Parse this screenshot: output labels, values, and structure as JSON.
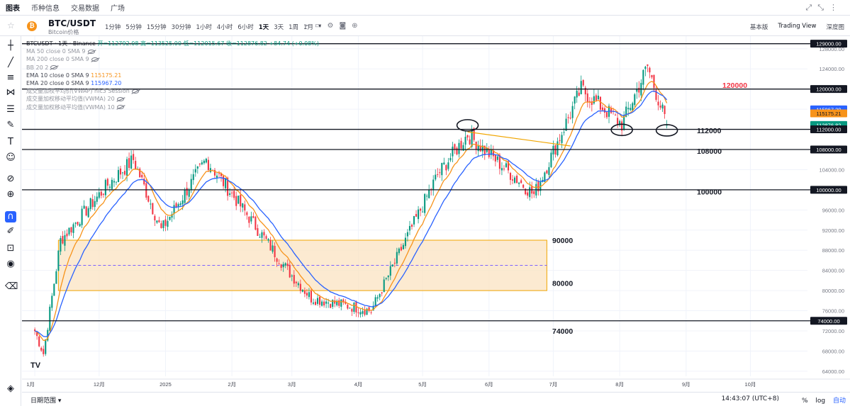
{
  "topnav": {
    "tabs": [
      "图表",
      "币种信息",
      "交易数据",
      "广场"
    ],
    "active_index": 0
  },
  "header": {
    "symbol": "BTC/USDT",
    "subtitle": "Bitcoin价格",
    "intervals": [
      "1分钟",
      "5分钟",
      "15分钟",
      "30分钟",
      "1小时",
      "4小时",
      "6小时",
      "1天",
      "3天",
      "1周",
      "1月"
    ],
    "selected_interval": "1天",
    "modes": [
      "基本版",
      "Trading View",
      "深度图"
    ],
    "selected_mode": "Trading View"
  },
  "legend": {
    "title": "BTCUSDT · 1天 · Binance",
    "ohlc": "开=112792.08 高=113525.00 低=112015.67 收=112876.82 +84.74 (+0.08%)",
    "indicators": [
      {
        "label": "MA 50 close 0 SMA 9",
        "value": "",
        "faded": true
      },
      {
        "label": "MA 200 close 0 SMA 9",
        "value": "",
        "faded": true
      },
      {
        "label": "BB 20 2",
        "value": "",
        "faded": true
      },
      {
        "label": "EMA 10 close 0 SMA 9",
        "value": "115175.21",
        "color": "#f7931a"
      },
      {
        "label": "EMA 20 close 0 SMA 9",
        "value": "115967.20",
        "color": "#2962ff"
      },
      {
        "label": "成交量加权平均价(VWAP) hlc3 Session",
        "value": "",
        "faded": true
      },
      {
        "label": "成交量加权移动平均值(VWMA) 20",
        "value": "",
        "faded": true
      },
      {
        "label": "成交量加权移动平均值(VWMA) 10",
        "value": "",
        "faded": true
      }
    ]
  },
  "price_axis": {
    "ticks": [
      "128000.00",
      "124000.00",
      "120000.00",
      "116000.00",
      "112000.00",
      "108000.00",
      "104000.00",
      "100000.00",
      "96000.00",
      "92000.00",
      "88000.00",
      "84000.00",
      "80000.00",
      "76000.00",
      "72000.00",
      "68000.00",
      "64000.00"
    ],
    "tags": [
      {
        "label": "129000.00",
        "price": 129000,
        "bg": "#131722",
        "fg": "#ffffff"
      },
      {
        "label": "120000.00",
        "price": 120000,
        "bg": "#131722",
        "fg": "#ffffff"
      },
      {
        "label": "115967.20",
        "price": 115967.2,
        "bg": "#2962ff",
        "fg": "#ffffff"
      },
      {
        "label": "115175.21",
        "price": 115175.21,
        "bg": "#f7931a",
        "fg": "#131722"
      },
      {
        "label": "112876.82",
        "price": 112876.82,
        "bg": "#089981",
        "fg": "#ffffff"
      },
      {
        "label": "112000.00",
        "price": 112000,
        "bg": "#131722",
        "fg": "#ffffff"
      },
      {
        "label": "108000.00",
        "price": 108000,
        "bg": "#131722",
        "fg": "#ffffff"
      },
      {
        "label": "100000.00",
        "price": 100000,
        "bg": "#131722",
        "fg": "#ffffff"
      },
      {
        "label": "74000.00",
        "price": 74000,
        "bg": "#131722",
        "fg": "#ffffff"
      }
    ]
  },
  "time_axis": [
    "1月",
    "12月",
    "2025",
    "2月",
    "3月",
    "4月",
    "5月",
    "6月",
    "7月",
    "8月",
    "9月",
    "10月"
  ],
  "annotations": {
    "level_labels": [
      {
        "text": "120000",
        "price": 120800,
        "color": "#f23645"
      },
      {
        "text": "112000",
        "price": 111800,
        "color": "#131722"
      },
      {
        "text": "108000",
        "price": 107700,
        "color": "#131722"
      },
      {
        "text": "100000",
        "price": 99600,
        "color": "#131722"
      },
      {
        "text": "90000",
        "price": 90000,
        "color": "#131722"
      },
      {
        "text": "80000",
        "price": 81500,
        "color": "#131722"
      },
      {
        "text": "74000",
        "price": 72000,
        "color": "#131722"
      }
    ],
    "horizontal_levels": [
      129000,
      120000,
      112000,
      108000,
      100000,
      74000
    ],
    "zone": {
      "top": 90000,
      "bottom": 80000,
      "mid": 85000
    }
  },
  "chart_data": {
    "type": "candlestick",
    "symbol": "BTCUSDT",
    "interval": "1天",
    "ylim": [
      63000,
      130500
    ],
    "key_points": [
      {
        "date": "2024-11-01",
        "price": 72000
      },
      {
        "date": "2024-11-05",
        "price": 67500
      },
      {
        "date": "2024-11-13",
        "price": 90000
      },
      {
        "date": "2024-12-05",
        "price": 101000
      },
      {
        "date": "2024-12-17",
        "price": 106000
      },
      {
        "date": "2024-12-30",
        "price": 92000
      },
      {
        "date": "2025-01-20",
        "price": 106000
      },
      {
        "date": "2025-02-03",
        "price": 98000
      },
      {
        "date": "2025-02-27",
        "price": 84000
      },
      {
        "date": "2025-03-10",
        "price": 78500
      },
      {
        "date": "2025-04-07",
        "price": 76000
      },
      {
        "date": "2025-05-08",
        "price": 103000
      },
      {
        "date": "2025-05-22",
        "price": 111000
      },
      {
        "date": "2025-06-22",
        "price": 99000
      },
      {
        "date": "2025-07-14",
        "price": 120000
      },
      {
        "date": "2025-08-02",
        "price": 113000
      },
      {
        "date": "2025-08-14",
        "price": 124500
      },
      {
        "date": "2025-08-23",
        "price": 112876.82
      }
    ],
    "last": {
      "open": 112792.08,
      "high": 113525.0,
      "low": 112015.67,
      "close": 112876.82
    },
    "ema10_last": 115175.21,
    "ema20_last": 115967.2,
    "series": [
      {
        "name": "EMA 10",
        "color": "#f7931a"
      },
      {
        "name": "EMA 20",
        "color": "#2962ff"
      }
    ]
  },
  "bottom": {
    "date_range_label": "日期范围",
    "clock": "14:43:07 (UTC+8)",
    "percent_label": "%",
    "log_label": "log",
    "auto_label": "自动"
  },
  "watermark": "TV"
}
